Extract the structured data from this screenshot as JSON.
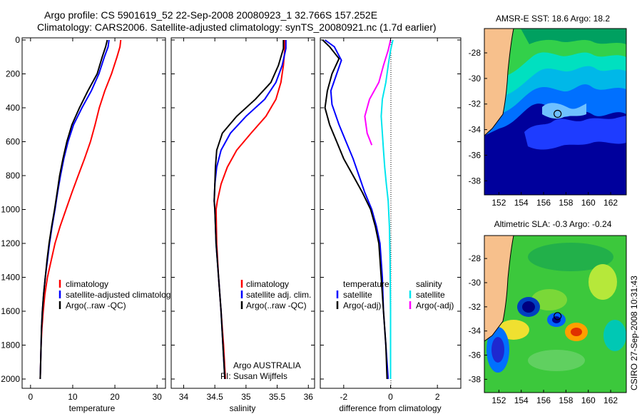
{
  "header": {
    "line1": "Argo profile: CS 5901619_52 22-Sep-2008 20080923_1 32.766S 157.252E",
    "line2": "Climatology: CARS2006. Satellite-adjusted climatology: synTS_20080921.nc (1.7d earlier)"
  },
  "colors": {
    "climatology": "#ff0000",
    "satellite": "#0000ff",
    "argo": "#000000",
    "sal_satellite": "#00e5ee",
    "sal_argo": "#ff00ff",
    "land": "#f7c08c"
  },
  "chart_data": [
    {
      "type": "line",
      "xlabel": "temperature",
      "xticks": [
        0,
        10,
        20,
        30
      ],
      "yticks": [
        0,
        200,
        400,
        600,
        800,
        1000,
        1200,
        1400,
        1600,
        1800,
        2000
      ],
      "xlim": [
        -2,
        32
      ],
      "ylim": [
        2040,
        0
      ],
      "legend": [
        "climatology",
        "satellite-adjusted climatology",
        "Argo(..raw -QC)"
      ],
      "series": [
        {
          "name": "climatology",
          "color": "#ff0000",
          "points": [
            [
              21.4,
              0
            ],
            [
              21.2,
              40
            ],
            [
              20.5,
              100
            ],
            [
              19.2,
              200
            ],
            [
              17.6,
              300
            ],
            [
              16.3,
              400
            ],
            [
              15.3,
              500
            ],
            [
              14.2,
              600
            ],
            [
              12.8,
              700
            ],
            [
              11.3,
              800
            ],
            [
              9.8,
              900
            ],
            [
              8.4,
              1000
            ],
            [
              7.0,
              1100
            ],
            [
              5.8,
              1200
            ],
            [
              4.9,
              1300
            ],
            [
              4.0,
              1400
            ],
            [
              3.4,
              1500
            ],
            [
              3.0,
              1600
            ],
            [
              2.7,
              1700
            ],
            [
              2.5,
              1800
            ],
            [
              2.4,
              1900
            ],
            [
              2.3,
              2000
            ]
          ]
        },
        {
          "name": "satellite-adjusted climatology",
          "color": "#0000ff",
          "points": [
            [
              18.6,
              0
            ],
            [
              18.4,
              40
            ],
            [
              17.5,
              100
            ],
            [
              16.2,
              200
            ],
            [
              14.4,
              300
            ],
            [
              12.2,
              400
            ],
            [
              10.2,
              500
            ],
            [
              8.9,
              600
            ],
            [
              7.9,
              700
            ],
            [
              7.1,
              800
            ],
            [
              6.4,
              900
            ],
            [
              5.8,
              1000
            ],
            [
              5.1,
              1100
            ],
            [
              4.5,
              1200
            ],
            [
              4.0,
              1300
            ],
            [
              3.5,
              1400
            ],
            [
              3.1,
              1500
            ],
            [
              2.8,
              1600
            ],
            [
              2.6,
              1700
            ],
            [
              2.5,
              1800
            ],
            [
              2.4,
              1900
            ],
            [
              2.3,
              2000
            ]
          ]
        },
        {
          "name": "Argo(..raw -QC)",
          "color": "#000000",
          "points": [
            [
              18.2,
              0
            ],
            [
              17.8,
              40
            ],
            [
              17.0,
              100
            ],
            [
              15.8,
              200
            ],
            [
              13.6,
              300
            ],
            [
              11.6,
              400
            ],
            [
              9.8,
              500
            ],
            [
              8.6,
              600
            ],
            [
              7.7,
              700
            ],
            [
              6.9,
              800
            ],
            [
              6.3,
              900
            ],
            [
              5.7,
              1000
            ],
            [
              5.0,
              1100
            ],
            [
              4.4,
              1200
            ],
            [
              3.9,
              1300
            ],
            [
              3.5,
              1400
            ],
            [
              3.1,
              1500
            ],
            [
              2.8,
              1600
            ],
            [
              2.6,
              1700
            ],
            [
              2.5,
              1800
            ],
            [
              2.4,
              1900
            ],
            [
              2.3,
              2000
            ]
          ]
        }
      ]
    },
    {
      "type": "line",
      "xlabel": "salinity",
      "xticks": [
        34,
        34.5,
        35,
        35.5,
        36
      ],
      "xlim": [
        33.8,
        36.1
      ],
      "ylim": [
        2040,
        0
      ],
      "legend": [
        "climatology",
        "satellite adj. clim.",
        "Argo(..raw -QC)"
      ],
      "annotation": [
        "Argo AUSTRALIA",
        "PI: Susan Wijffels"
      ],
      "series": [
        {
          "name": "climatology",
          "color": "#ff0000",
          "points": [
            [
              35.62,
              0
            ],
            [
              35.62,
              60
            ],
            [
              35.6,
              150
            ],
            [
              35.56,
              250
            ],
            [
              35.48,
              350
            ],
            [
              35.32,
              450
            ],
            [
              35.08,
              550
            ],
            [
              34.85,
              650
            ],
            [
              34.7,
              750
            ],
            [
              34.6,
              850
            ],
            [
              34.54,
              950
            ],
            [
              34.52,
              1000
            ],
            [
              34.53,
              1200
            ],
            [
              34.56,
              1400
            ],
            [
              34.6,
              1600
            ],
            [
              34.64,
              1800
            ],
            [
              34.67,
              2000
            ]
          ]
        },
        {
          "name": "satellite adj. clim.",
          "color": "#0000ff",
          "points": [
            [
              35.64,
              0
            ],
            [
              35.64,
              50
            ],
            [
              35.58,
              150
            ],
            [
              35.48,
              250
            ],
            [
              35.3,
              350
            ],
            [
              35.0,
              450
            ],
            [
              34.75,
              550
            ],
            [
              34.6,
              650
            ],
            [
              34.53,
              750
            ],
            [
              34.5,
              850
            ],
            [
              34.49,
              950
            ],
            [
              34.5,
              1000
            ],
            [
              34.52,
              1200
            ],
            [
              34.56,
              1400
            ],
            [
              34.6,
              1600
            ],
            [
              34.63,
              1800
            ],
            [
              34.66,
              2000
            ]
          ]
        },
        {
          "name": "Argo(..raw -QC)",
          "color": "#000000",
          "points": [
            [
              35.6,
              0
            ],
            [
              35.6,
              50
            ],
            [
              35.52,
              150
            ],
            [
              35.4,
              250
            ],
            [
              35.15,
              350
            ],
            [
              34.85,
              450
            ],
            [
              34.62,
              550
            ],
            [
              34.53,
              650
            ],
            [
              34.51,
              750
            ],
            [
              34.5,
              850
            ],
            [
              34.49,
              950
            ],
            [
              34.5,
              1000
            ],
            [
              34.52,
              1200
            ],
            [
              34.56,
              1400
            ],
            [
              34.6,
              1600
            ],
            [
              34.63,
              1800
            ],
            [
              34.66,
              2000
            ]
          ]
        }
      ]
    },
    {
      "type": "line",
      "xlabel": "difference from climatology",
      "xticks": [
        -2,
        0,
        2
      ],
      "xlim": [
        -3.0,
        3.0
      ],
      "ylim": [
        2040,
        0
      ],
      "legend": [
        "temperature",
        "salinity",
        "satellite",
        "Argo(-adj)",
        "satellite",
        "Argo(-adj)"
      ],
      "series": [
        {
          "name": "temperature satellite",
          "color": "#0000ff",
          "points": [
            [
              -2.8,
              0
            ],
            [
              -2.4,
              40
            ],
            [
              -2.1,
              120
            ],
            [
              -2.3,
              200
            ],
            [
              -2.55,
              300
            ],
            [
              -2.5,
              380
            ],
            [
              -2.2,
              500
            ],
            [
              -1.9,
              600
            ],
            [
              -1.6,
              700
            ],
            [
              -1.35,
              800
            ],
            [
              -1.1,
              900
            ],
            [
              -0.8,
              1000
            ],
            [
              -0.6,
              1100
            ],
            [
              -0.45,
              1200
            ],
            [
              -0.35,
              1400
            ],
            [
              -0.3,
              1600
            ],
            [
              -0.2,
              1800
            ],
            [
              -0.1,
              2000
            ]
          ]
        },
        {
          "name": "temperature Argo(-adj)",
          "color": "#000000",
          "points": [
            [
              -2.9,
              0
            ],
            [
              -2.6,
              40
            ],
            [
              -2.2,
              110
            ],
            [
              -2.5,
              200
            ],
            [
              -2.7,
              300
            ],
            [
              -2.8,
              400
            ],
            [
              -2.6,
              500
            ],
            [
              -2.3,
              600
            ],
            [
              -2.0,
              700
            ],
            [
              -1.6,
              800
            ],
            [
              -1.2,
              900
            ],
            [
              -0.85,
              1000
            ],
            [
              -0.65,
              1100
            ],
            [
              -0.5,
              1200
            ],
            [
              -0.4,
              1400
            ],
            [
              -0.3,
              1600
            ],
            [
              -0.2,
              1800
            ],
            [
              -0.15,
              2000
            ]
          ]
        },
        {
          "name": "salinity satellite",
          "color": "#00e5ee",
          "points": [
            [
              0.1,
              0
            ],
            [
              0.0,
              60
            ],
            [
              -0.1,
              150
            ],
            [
              -0.2,
              250
            ],
            [
              -0.35,
              350
            ],
            [
              -0.4,
              450
            ],
            [
              -0.35,
              550
            ],
            [
              -0.3,
              650
            ],
            [
              -0.25,
              750
            ],
            [
              -0.18,
              850
            ],
            [
              -0.1,
              950
            ],
            [
              -0.05,
              1100
            ],
            [
              -0.02,
              1300
            ],
            [
              0.0,
              1600
            ],
            [
              0.0,
              1800
            ],
            [
              0.0,
              2000
            ]
          ]
        },
        {
          "name": "salinity Argo(-adj)",
          "color": "#ff00ff",
          "points": [
            [
              0.0,
              0
            ],
            [
              -0.1,
              60
            ],
            [
              -0.3,
              150
            ],
            [
              -0.5,
              250
            ],
            [
              -0.9,
              350
            ],
            [
              -1.1,
              450
            ],
            [
              -1.0,
              550
            ],
            [
              -0.8,
              620
            ]
          ]
        }
      ]
    },
    {
      "type": "heatmap",
      "title": "AMSR-E SST: 18.6 Argo: 18.2",
      "xticks": [
        152,
        154,
        156,
        158,
        160,
        162
      ],
      "yticks": [
        -28,
        -30,
        -32,
        -34,
        -36,
        -38
      ],
      "xlim": [
        150.7,
        163.4
      ],
      "ylim": [
        -39.1,
        -26.1
      ],
      "marker": [
        157.252,
        -32.766
      ]
    },
    {
      "type": "heatmap",
      "title": "Altimetric SLA: -0.3 Argo: -0.24",
      "xticks": [
        152,
        154,
        156,
        158,
        160,
        162
      ],
      "yticks": [
        -28,
        -30,
        -32,
        -34,
        -36,
        -38
      ],
      "xlim": [
        150.7,
        163.4
      ],
      "ylim": [
        -39.1,
        -26.1
      ],
      "marker": [
        157.252,
        -32.766
      ]
    }
  ],
  "side_note": "CSIRO 27-Sep-2008 10:31:43"
}
